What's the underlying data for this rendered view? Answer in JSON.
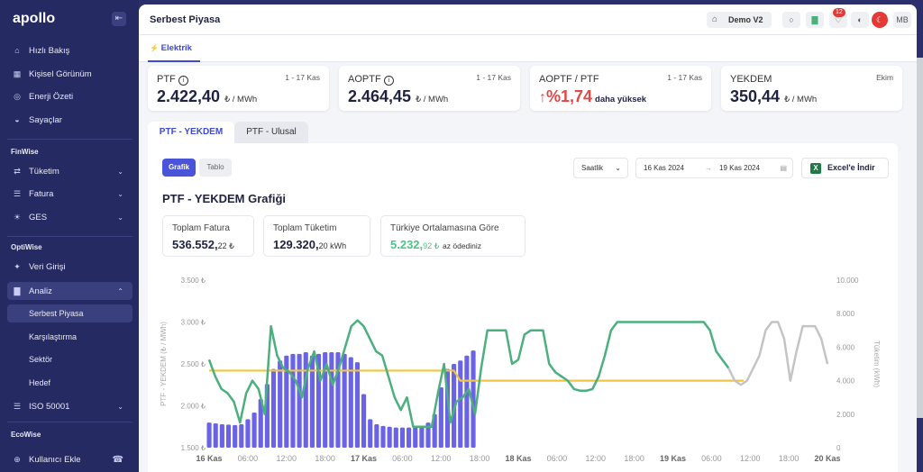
{
  "sidebar": {
    "logo": "apollo",
    "collapse": "⇤",
    "items": [
      {
        "label": "Hızlı Bakış",
        "icon": "home-icon",
        "glyph": "⌂"
      },
      {
        "label": "Kişisel Görünüm",
        "icon": "grid-icon",
        "glyph": "▦"
      },
      {
        "label": "Enerji Özeti",
        "icon": "globe-icon",
        "glyph": "◎"
      },
      {
        "label": "Sayaçlar",
        "icon": "gauge-icon",
        "glyph": "◒"
      }
    ],
    "section_finwise": "FinWise",
    "finwise": [
      {
        "label": "Tüketim",
        "icon": "flow-icon",
        "glyph": "⇄"
      },
      {
        "label": "Fatura",
        "icon": "invoice-icon",
        "glyph": "☰"
      },
      {
        "label": "GES",
        "icon": "sun-icon",
        "glyph": "☀"
      }
    ],
    "section_optiwise": "OptiWise",
    "optiwise": [
      {
        "label": "Veri Girişi",
        "icon": "data-entry-icon",
        "glyph": "✦"
      },
      {
        "label": "Analiz",
        "icon": "analysis-icon",
        "glyph": "▇"
      }
    ],
    "analiz_sub": [
      "Serbest Piyasa",
      "Karşılaştırma",
      "Sektör",
      "Hedef"
    ],
    "iso": {
      "label": "ISO 50001",
      "icon": "iso-icon",
      "glyph": "☰"
    },
    "section_ecowise": "EcoWise",
    "add_user": {
      "label": "Kullanıcı Ekle",
      "icon": "add-user-icon",
      "glyph": "⊕"
    },
    "headset": "☎"
  },
  "header": {
    "title": "Serbest Piyasa",
    "demo": "Demo V2",
    "notification_count": "12",
    "avatar": "MB"
  },
  "tabs": {
    "active": "Elektrik",
    "glyph": "⚡"
  },
  "cards": [
    {
      "label": "PTF",
      "range": "1 - 17 Kas",
      "value": "2.422,40",
      "unit": "₺ / MWh",
      "info": true
    },
    {
      "label": "AOPTF",
      "range": "1 - 17 Kas",
      "value": "2.464,45",
      "unit": "₺ / MWh",
      "info": true
    },
    {
      "label": "AOPTF / PTF",
      "range": "1 - 17 Kas",
      "value": "%1,74",
      "extra": "daha yüksek",
      "arrow": "🡅"
    },
    {
      "label": "YEKDEM",
      "range": "Ekim",
      "value": "350,44",
      "unit": "₺ / MWh"
    }
  ],
  "panel_tabs": [
    "PTF - YEKDEM",
    "PTF - Ulusal"
  ],
  "view_toggle": {
    "graph": "Grafik",
    "table": "Tablo"
  },
  "period_select": "Saatlik",
  "date_start": "16 Kas 2024",
  "date_arrow": "→",
  "date_end": "19 Kas 2024",
  "export_label": "Excel'e İndir",
  "excel_glyph": "X",
  "chart_title": "PTF - YEKDEM Grafiği",
  "stats": {
    "invoice_label": "Toplam Fatura",
    "invoice_value": "536.552,",
    "invoice_decimal": "22 ₺",
    "consumption_label": "Toplam Tüketim",
    "consumption_value": "129.320,",
    "consumption_decimal": "20 kWh",
    "avg_label": "Türkiye Ortalamasına Göre",
    "avg_value": "5.232,",
    "avg_decimal": "92 ₺",
    "avg_note": "az ödediniz"
  },
  "colors": {
    "accent": "#3d4ad1",
    "bar": "#6a63e6",
    "ptf": "#4caf7e",
    "ptf_future": "#c4c4c4",
    "yekdem": "#f2c541",
    "red": "#e04848"
  },
  "chart_data": {
    "type": "bar+line",
    "ylabel_left": "PTF - YEKDEM (₺ / MWh)",
    "ylabel_right": "Tüketim (kWh)",
    "left_ticks": [
      "3.500 ₺",
      "3.000 ₺",
      "2.500 ₺",
      "2.000 ₺",
      "1.500 ₺"
    ],
    "right_ticks": [
      "10.000",
      "8.000",
      "6.000",
      "4.000",
      "2.000",
      "0"
    ],
    "ylim_left": [
      1500,
      3500
    ],
    "ylim_right": [
      0,
      10000
    ],
    "x_ticks": [
      "16 Kas",
      "06:00",
      "12:00",
      "18:00",
      "17 Kas",
      "06:00",
      "12:00",
      "18:00",
      "18 Kas",
      "06:00",
      "12:00",
      "18:00",
      "19 Kas",
      "06:00",
      "12:00",
      "18:00",
      "20 Kas"
    ],
    "x_tick_bold": [
      true,
      false,
      false,
      false,
      true,
      false,
      false,
      false,
      true,
      false,
      false,
      false,
      true,
      false,
      false,
      false,
      true
    ],
    "consumption": [
      1500,
      1450,
      1400,
      1380,
      1350,
      1400,
      1700,
      2100,
      2900,
      3800,
      4700,
      5200,
      5500,
      5600,
      5600,
      5700,
      5500,
      5600,
      5700,
      5700,
      5700,
      5600,
      5400,
      5100,
      3200,
      1700,
      1400,
      1300,
      1250,
      1200,
      1200,
      1200,
      1250,
      1300,
      1500,
      2000,
      3600,
      4700,
      5000,
      5200,
      5500,
      5800
    ],
    "ptf": [
      2550,
      2350,
      2200,
      2150,
      2050,
      1800,
      2150,
      2300,
      2200,
      1900,
      2950,
      2600,
      2450,
      2400,
      2300,
      2100,
      2450,
      2650,
      2300,
      2500,
      2250,
      2450,
      2700,
      2950,
      3020,
      2950,
      2800,
      2650,
      2600,
      2350,
      2100,
      1950,
      2100,
      1750,
      1750,
      1750,
      1750,
      2150,
      2500,
      1800,
      2050,
      2100,
      2200,
      1900,
      2450,
      2900,
      2900,
      2900,
      2900,
      2500,
      2550,
      2850,
      2900,
      2900,
      2900,
      2500,
      2400,
      2350,
      2300,
      2200,
      2180,
      2180,
      2200,
      2350,
      2600,
      2900,
      3000,
      3000,
      3000,
      3000,
      3000,
      3000,
      3000,
      3000,
      3000,
      3000,
      3000,
      3000,
      3000,
      3000,
      3000,
      2900,
      2650,
      2550,
      2450,
      2300,
      2250,
      2300,
      2450,
      2600,
      2900,
      3000,
      3000,
      2800,
      2300,
      2650,
      2950,
      2950,
      2950,
      2800,
      2500
    ],
    "ptf_known_points": 84,
    "yekdem": [
      2420,
      2420,
      2420,
      2420,
      2420,
      2420,
      2420,
      2420,
      2420,
      2420,
      2420,
      2420,
      2420,
      2420,
      2420,
      2420,
      2420,
      2420,
      2420,
      2420,
      2420,
      2420,
      2420,
      2420,
      2420,
      2420,
      2420,
      2420,
      2420,
      2420,
      2420,
      2420,
      2420,
      2420,
      2420,
      2420,
      2420,
      2420,
      2420,
      2300,
      2300,
      2300,
      2300,
      2300,
      2300,
      2300,
      2300,
      2300,
      2300,
      2300,
      2300,
      2300,
      2300,
      2300,
      2300,
      2300,
      2300,
      2300,
      2300,
      2300,
      2300,
      2300,
      2300,
      2300,
      2300,
      2300,
      2300,
      2300,
      2300,
      2300,
      2300,
      2300,
      2300,
      2300,
      2300,
      2300,
      2300,
      2300,
      2300,
      2300,
      2300,
      2300,
      2300,
      2300
    ]
  }
}
